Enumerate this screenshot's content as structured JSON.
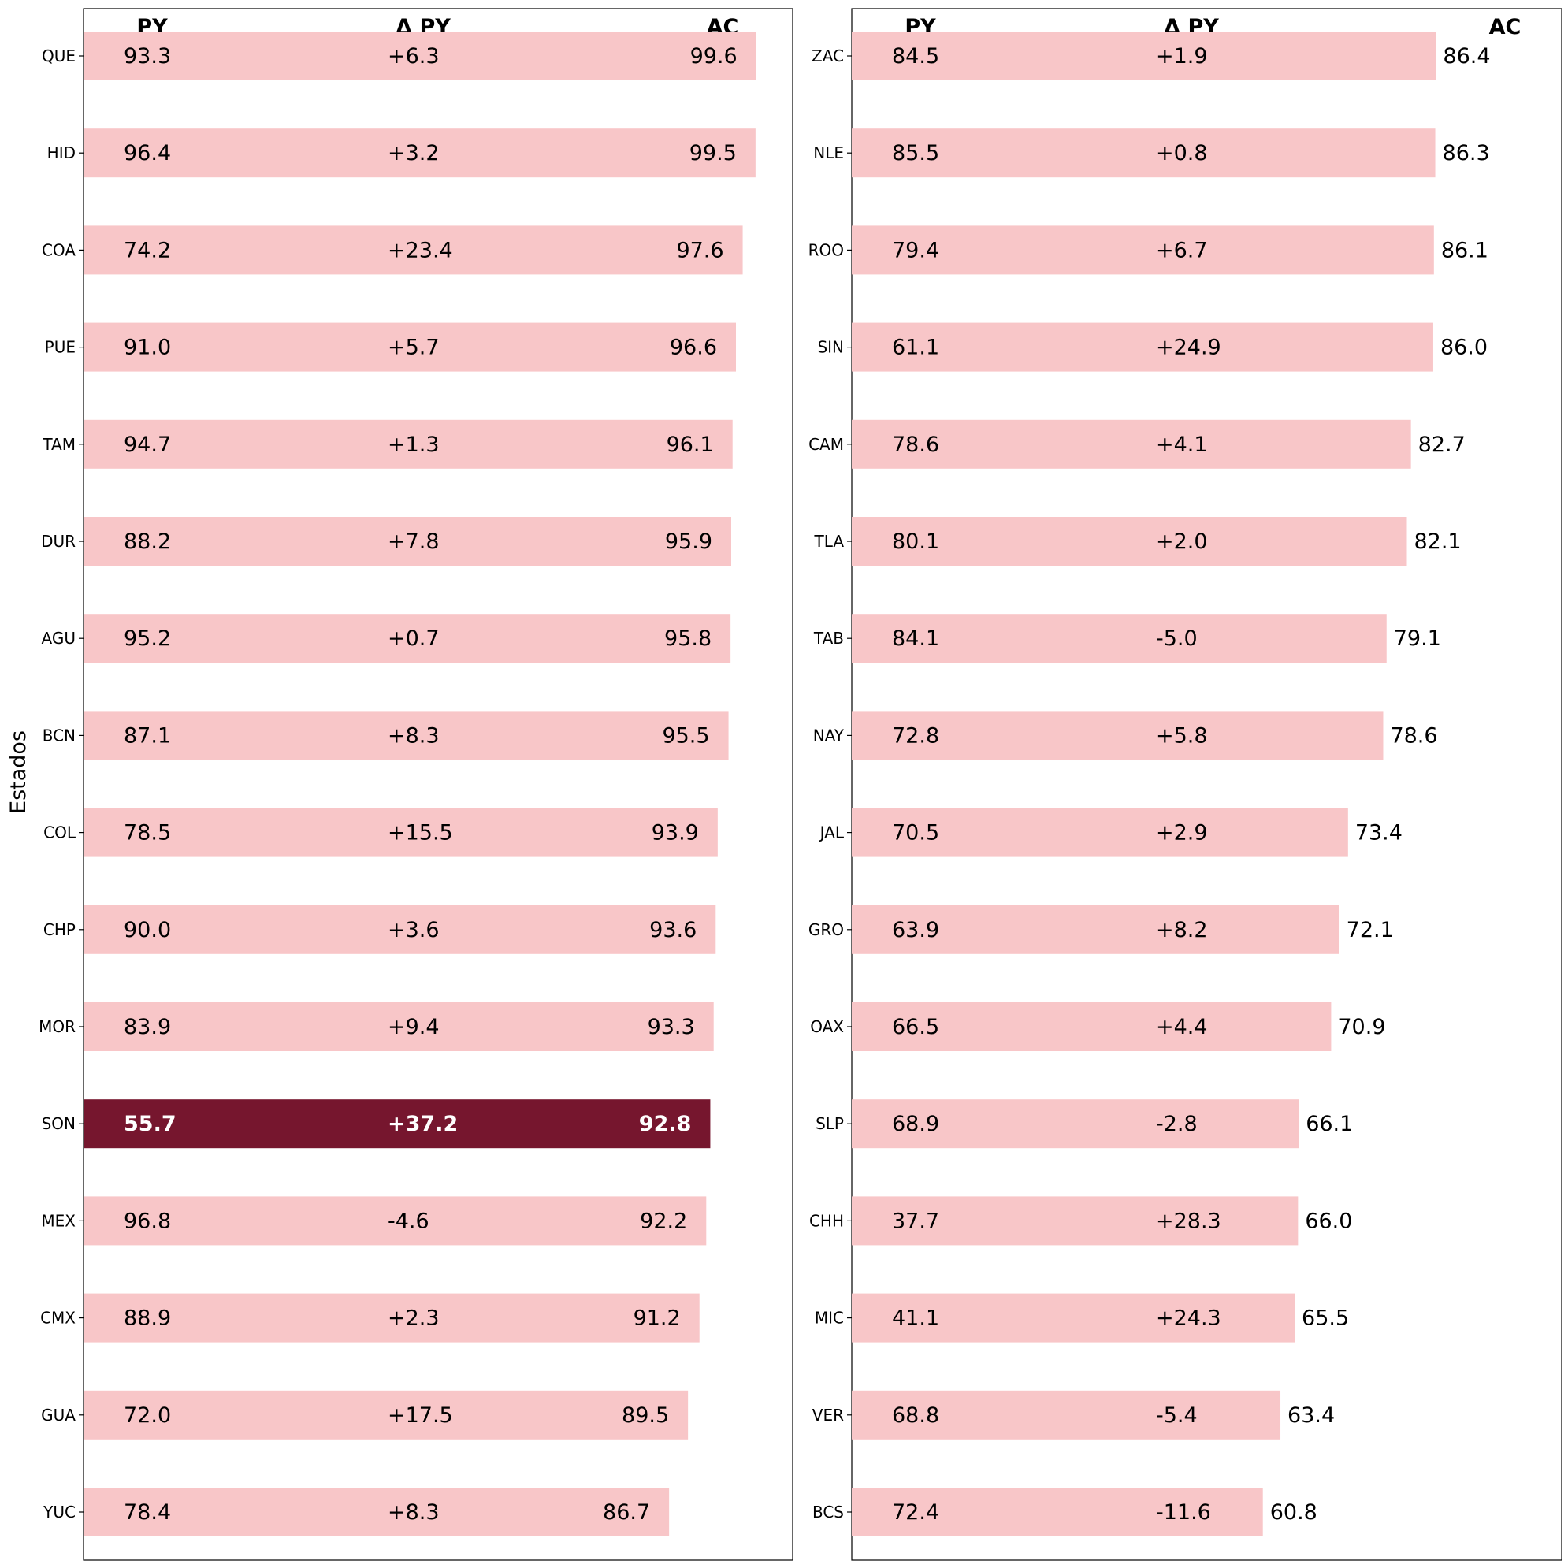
{
  "chart_data": {
    "type": "bar",
    "orientation": "horizontal",
    "ylabel": "Estados",
    "columns": [
      "PY",
      "Δ PY",
      "AC"
    ],
    "colors": {
      "bar": "#f8c6c8",
      "highlight_bar": "#76162e",
      "positive": "#1e6b1e",
      "negative": "#ff0000",
      "text": "#000000",
      "highlight_text": "#ffffff"
    },
    "xlim": [
      0,
      105
    ],
    "highlight": "SON",
    "panels": [
      {
        "categories": [
          "QUE",
          "HID",
          "COA",
          "PUE",
          "TAM",
          "DUR",
          "AGU",
          "BCN",
          "COL",
          "CHP",
          "MOR",
          "SON",
          "MEX",
          "CMX",
          "GUA",
          "YUC"
        ],
        "py": [
          "93.3",
          "96.4",
          "74.2",
          "91.0",
          "94.7",
          "88.2",
          "95.2",
          "87.1",
          "78.5",
          "90.0",
          "83.9",
          "55.7",
          "96.8",
          "88.9",
          "72.0",
          "78.4"
        ],
        "delta": [
          "+6.3",
          "+3.2",
          "+23.4",
          "+5.7",
          "+1.3",
          "+7.8",
          "+0.7",
          "+8.3",
          "+15.5",
          "+3.6",
          "+9.4",
          "+37.2",
          "-4.6",
          "+2.3",
          "+17.5",
          "+8.3"
        ],
        "ac": [
          "99.6",
          "99.5",
          "97.6",
          "96.6",
          "96.1",
          "95.9",
          "95.8",
          "95.5",
          "93.9",
          "93.6",
          "93.3",
          "92.8",
          "92.2",
          "91.2",
          "89.5",
          "86.7"
        ]
      },
      {
        "categories": [
          "ZAC",
          "NLE",
          "ROO",
          "SIN",
          "CAM",
          "TLA",
          "TAB",
          "NAY",
          "JAL",
          "GRO",
          "OAX",
          "SLP",
          "CHH",
          "MIC",
          "VER",
          "BCS"
        ],
        "py": [
          "84.5",
          "85.5",
          "79.4",
          "61.1",
          "78.6",
          "80.1",
          "84.1",
          "72.8",
          "70.5",
          "63.9",
          "66.5",
          "68.9",
          "37.7",
          "41.1",
          "68.8",
          "72.4"
        ],
        "delta": [
          "+1.9",
          "+0.8",
          "+6.7",
          "+24.9",
          "+4.1",
          "+2.0",
          "-5.0",
          "+5.8",
          "+2.9",
          "+8.2",
          "+4.4",
          "-2.8",
          "+28.3",
          "+24.3",
          "-5.4",
          "-11.6"
        ],
        "ac": [
          "86.4",
          "86.3",
          "86.1",
          "86.0",
          "82.7",
          "82.1",
          "79.1",
          "78.6",
          "73.4",
          "72.1",
          "70.9",
          "66.1",
          "66.0",
          "65.5",
          "63.4",
          "60.8"
        ]
      }
    ]
  }
}
